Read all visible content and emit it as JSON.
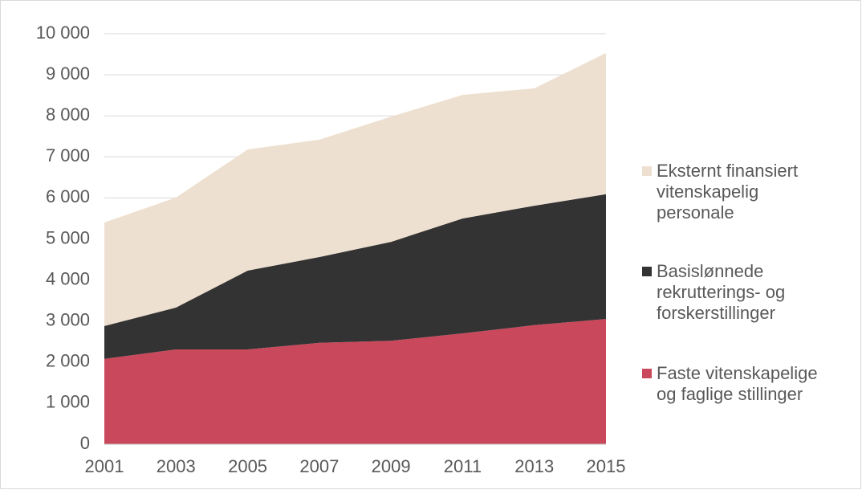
{
  "chart_data": {
    "type": "stacked_area",
    "categories": [
      "2001",
      "2003",
      "2005",
      "2007",
      "2009",
      "2011",
      "2013",
      "2015"
    ],
    "series": [
      {
        "name": "Faste vitenskapelige og faglige stillinger",
        "color": "#c9485b",
        "values": [
          2080,
          2310,
          2310,
          2470,
          2520,
          2700,
          2900,
          3050
        ]
      },
      {
        "name": "Basislønnede rekrutterings- og forskerstillinger",
        "color": "#333333",
        "values": [
          800,
          1020,
          1920,
          2090,
          2410,
          2800,
          2910,
          3040
        ]
      },
      {
        "name": "Eksternt finansiert vitenskapelig personale",
        "color": "#eee0d0",
        "values": [
          2520,
          2680,
          2950,
          2860,
          3050,
          3010,
          2860,
          3440
        ]
      }
    ],
    "ylim": [
      0,
      10000
    ],
    "yticks": [
      0,
      {
        "value": 1000,
        "label": "1 000"
      },
      {
        "value": 2000,
        "label": "2 000"
      },
      {
        "value": 3000,
        "label": "3 000"
      },
      {
        "value": 4000,
        "label": "4 000"
      },
      {
        "value": 5000,
        "label": "5 000"
      },
      {
        "value": 6000,
        "label": "6 000"
      },
      {
        "value": 7000,
        "label": "7 000"
      },
      {
        "value": 8000,
        "label": "8 000"
      },
      {
        "value": 9000,
        "label": "9 000"
      },
      {
        "value": 10000,
        "label": "10 000"
      }
    ],
    "grid": true,
    "legend": "right"
  }
}
